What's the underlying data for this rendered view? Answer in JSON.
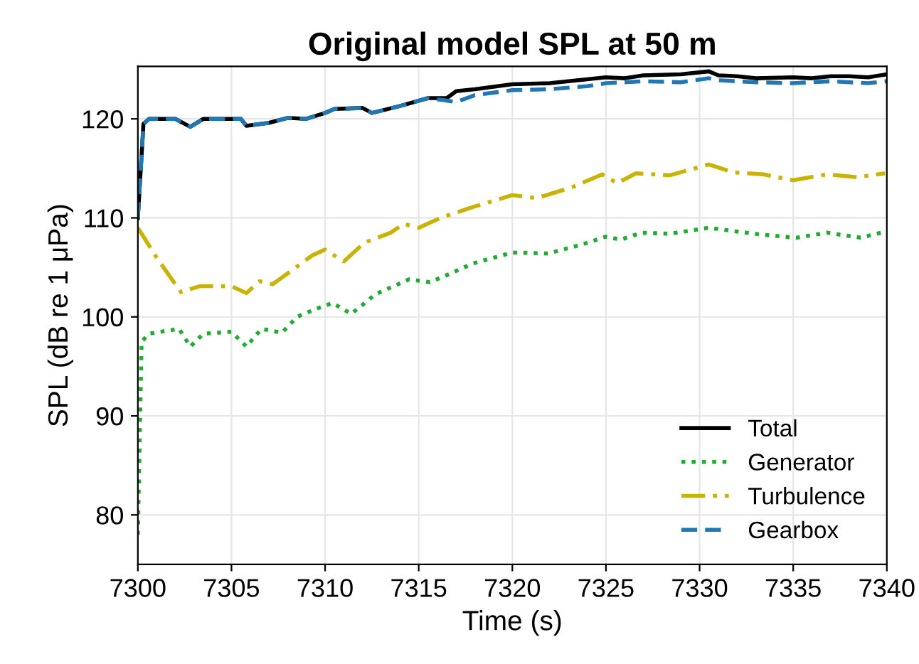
{
  "chart_data": {
    "type": "line",
    "title": "Original model SPL at 50 m",
    "xlabel": "Time (s)",
    "ylabel": "SPL (dB re 1 μPa)",
    "xlim": [
      7300,
      7340
    ],
    "ylim": [
      75,
      125.3
    ],
    "xticks": [
      7300,
      7305,
      7310,
      7315,
      7320,
      7325,
      7330,
      7335,
      7340
    ],
    "yticks": [
      80,
      90,
      100,
      110,
      120
    ],
    "grid": true,
    "legend": "bottom right",
    "series": [
      {
        "name": "Total",
        "color": "#000000",
        "line_style": "solid",
        "x": [
          7300,
          7300.3,
          7300.6,
          7302,
          7302.8,
          7303.5,
          7305.5,
          7305.8,
          7307,
          7308,
          7309,
          7310,
          7310.5,
          7312,
          7312.5,
          7314,
          7315.5,
          7316.5,
          7317,
          7318,
          7320,
          7322,
          7324,
          7325,
          7326,
          7327,
          7329,
          7330.5,
          7331,
          7332,
          7333,
          7335,
          7336,
          7337,
          7338,
          7339,
          7340
        ],
        "values": [
          110,
          119.5,
          120,
          120,
          119.2,
          120,
          120,
          119.3,
          119.6,
          120.1,
          120,
          120.6,
          121,
          121.1,
          120.6,
          121.3,
          122.1,
          122.1,
          122.8,
          123,
          123.5,
          123.6,
          124,
          124.2,
          124.1,
          124.4,
          124.5,
          124.8,
          124.4,
          124.3,
          124.1,
          124.2,
          124.1,
          124.3,
          124.3,
          124.2,
          124.5
        ]
      },
      {
        "name": "Generator",
        "color": "#22aa33",
        "line_style": "dotted",
        "x": [
          7300,
          7300.2,
          7300.6,
          7302.2,
          7302.8,
          7303.5,
          7305,
          7305.8,
          7306.6,
          7307.7,
          7308.5,
          7309.5,
          7310.4,
          7311.4,
          7312.7,
          7314.5,
          7315.6,
          7316.6,
          7317.9,
          7320,
          7321.9,
          7323.7,
          7325,
          7325.8,
          7326.9,
          7328.4,
          7330.5,
          7332.1,
          7333.4,
          7335.2,
          7336.8,
          7338.6,
          7339.9
        ],
        "values": [
          78,
          97.5,
          98.3,
          98.8,
          97,
          98.3,
          98.5,
          97,
          98.8,
          98.4,
          100,
          100.8,
          101.4,
          100.3,
          102.3,
          103.8,
          103.5,
          104.3,
          105.4,
          106.5,
          106.4,
          107.3,
          108.1,
          107.8,
          108.5,
          108.4,
          109,
          108.6,
          108.3,
          108,
          108.5,
          108,
          108.6
        ]
      },
      {
        "name": "Turbulence",
        "color": "#c8b400",
        "line_style": "dashdot",
        "x": [
          7300,
          7301,
          7302.3,
          7303.3,
          7305,
          7305.8,
          7306.5,
          7307.2,
          7308.3,
          7309.3,
          7310,
          7311,
          7312.1,
          7313.5,
          7314.2,
          7315,
          7316.3,
          7317.9,
          7320,
          7321.3,
          7323.2,
          7324.8,
          7325.6,
          7326.6,
          7328.4,
          7330.5,
          7331.8,
          7333.4,
          7335,
          7336.8,
          7338.4,
          7339.9
        ],
        "values": [
          109,
          106,
          102.5,
          103.1,
          103.1,
          102.4,
          103.6,
          103.3,
          104.8,
          106.2,
          106.8,
          105.6,
          107.5,
          108.5,
          109.4,
          109,
          110.1,
          111.1,
          112.3,
          112,
          113.1,
          114.4,
          113.5,
          114.5,
          114.3,
          115.4,
          114.6,
          114.4,
          113.8,
          114.4,
          114.1,
          114.5
        ]
      },
      {
        "name": "Gearbox",
        "color": "#1f77b4",
        "line_style": "dashed",
        "x": [
          7300,
          7300.3,
          7300.6,
          7302,
          7302.8,
          7303.5,
          7305.5,
          7305.8,
          7307,
          7308,
          7309,
          7310,
          7310.5,
          7312,
          7312.5,
          7314,
          7315.5,
          7316.3,
          7317,
          7318,
          7320,
          7322,
          7324,
          7325,
          7327,
          7329,
          7330.5,
          7331,
          7333,
          7335,
          7337,
          7339,
          7340
        ],
        "values": [
          110,
          119.5,
          120,
          120,
          119.2,
          120,
          120,
          119.3,
          119.6,
          120.1,
          120,
          120.6,
          121,
          121.1,
          120.6,
          121.3,
          122.1,
          121.9,
          121.7,
          122.4,
          122.9,
          123,
          123.3,
          123.6,
          123.8,
          123.7,
          124.1,
          123.9,
          123.7,
          123.6,
          123.8,
          123.6,
          123.8
        ]
      }
    ]
  }
}
